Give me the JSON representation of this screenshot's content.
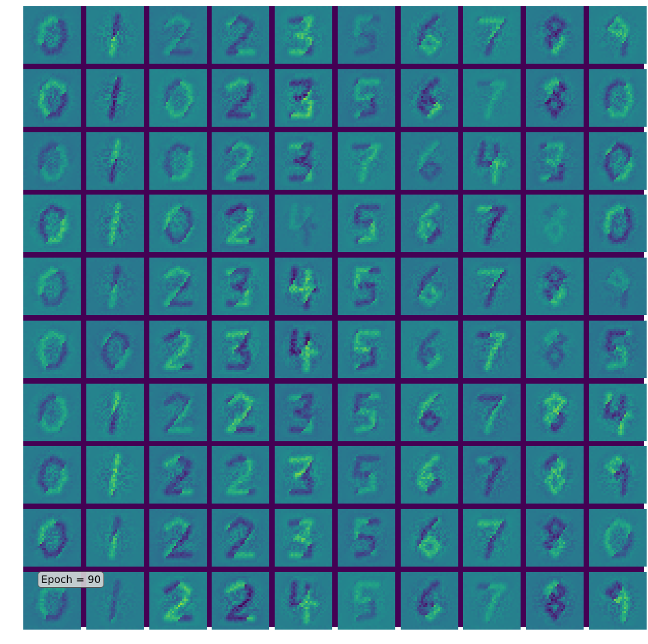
{
  "figure": {
    "epoch_label": "Epoch = 90",
    "grid": {
      "rows": 10,
      "cols": 10,
      "tile_pixels": 28,
      "colormap": "viridis",
      "separator_color": "#440154"
    },
    "tile_digits": [
      [
        0,
        1,
        2,
        2,
        3,
        5,
        6,
        7,
        8,
        9
      ],
      [
        0,
        1,
        0,
        2,
        3,
        5,
        6,
        7,
        8,
        0
      ],
      [
        0,
        1,
        0,
        2,
        3,
        7,
        6,
        4,
        3,
        0
      ],
      [
        0,
        1,
        0,
        2,
        4,
        5,
        6,
        7,
        8,
        0
      ],
      [
        0,
        1,
        2,
        3,
        4,
        5,
        6,
        7,
        8,
        9
      ],
      [
        0,
        0,
        2,
        3,
        4,
        5,
        6,
        7,
        8,
        5
      ],
      [
        0,
        1,
        2,
        2,
        3,
        5,
        6,
        7,
        8,
        4
      ],
      [
        0,
        1,
        2,
        2,
        3,
        5,
        6,
        7,
        8,
        9
      ],
      [
        0,
        1,
        2,
        2,
        3,
        5,
        6,
        7,
        8,
        0
      ],
      [
        0,
        1,
        2,
        2,
        4,
        5,
        6,
        7,
        8,
        9
      ]
    ],
    "tile_contrast": [
      [
        0.7,
        0.9,
        0.5,
        0.7,
        0.8,
        0.4,
        0.8,
        0.7,
        0.8,
        0.7
      ],
      [
        0.8,
        1.0,
        0.6,
        0.8,
        1.0,
        0.7,
        0.9,
        0.4,
        0.9,
        0.7
      ],
      [
        0.5,
        0.9,
        0.6,
        0.7,
        0.8,
        0.6,
        0.5,
        0.8,
        0.7,
        0.8
      ],
      [
        0.8,
        0.9,
        0.7,
        0.9,
        0.3,
        0.8,
        0.8,
        0.9,
        0.3,
        0.8
      ],
      [
        0.6,
        0.7,
        0.7,
        0.8,
        1.0,
        0.8,
        0.7,
        0.8,
        0.8,
        0.4
      ],
      [
        0.7,
        0.6,
        0.8,
        0.9,
        1.0,
        0.8,
        0.6,
        0.9,
        0.5,
        0.8
      ],
      [
        0.6,
        0.9,
        0.6,
        0.9,
        0.7,
        0.7,
        0.8,
        0.7,
        0.9,
        0.9
      ],
      [
        0.7,
        0.9,
        0.8,
        0.7,
        0.9,
        0.6,
        0.8,
        0.7,
        0.8,
        0.8
      ],
      [
        0.8,
        0.7,
        0.8,
        0.8,
        0.8,
        0.7,
        0.9,
        0.8,
        0.8,
        0.6
      ],
      [
        0.6,
        0.5,
        0.9,
        1.0,
        0.9,
        0.5,
        0.8,
        0.5,
        0.9,
        0.9
      ]
    ]
  }
}
